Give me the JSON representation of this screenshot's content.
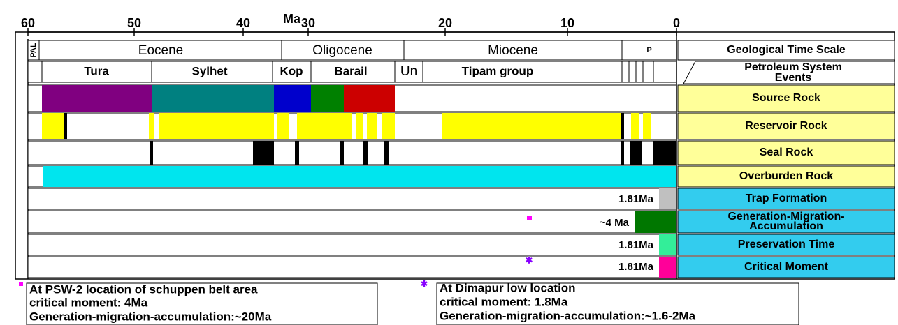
{
  "header": {
    "axis_label": "Ma",
    "ticks": [
      "60",
      "50",
      "40",
      "30",
      "20",
      "10",
      "0"
    ],
    "column_1": "Geological Time Scale",
    "column_2": [
      "Petroleum System",
      "Events"
    ]
  },
  "epochs": [
    "PAL",
    "Eocene",
    "Oligocene",
    "Miocene",
    "P"
  ],
  "formations": [
    "Tura",
    "Sylhet",
    "Kop",
    "Barail",
    "Un",
    "Tipam group"
  ],
  "events": [
    "Source Rock",
    "Reservoir Rock",
    "Seal Rock",
    "Overburden Rock",
    "Trap Formation",
    [
      "Generation-Migration-",
      "Accumulation"
    ],
    "Preservation Time",
    "Critical Moment"
  ],
  "event_times": [
    "1.81Ma",
    "~4 Ma",
    "1.81Ma",
    "1.81Ma"
  ],
  "notes": [
    [
      "At PSW-2 location of schuppen belt area",
      "critical moment: 4Ma",
      "Generation-migration-accumulation:~20Ma"
    ],
    [
      "At Dimapur low location",
      "critical moment: 1.8Ma",
      "Generation-migration-accumulation:~1.6-2Ma"
    ]
  ]
}
